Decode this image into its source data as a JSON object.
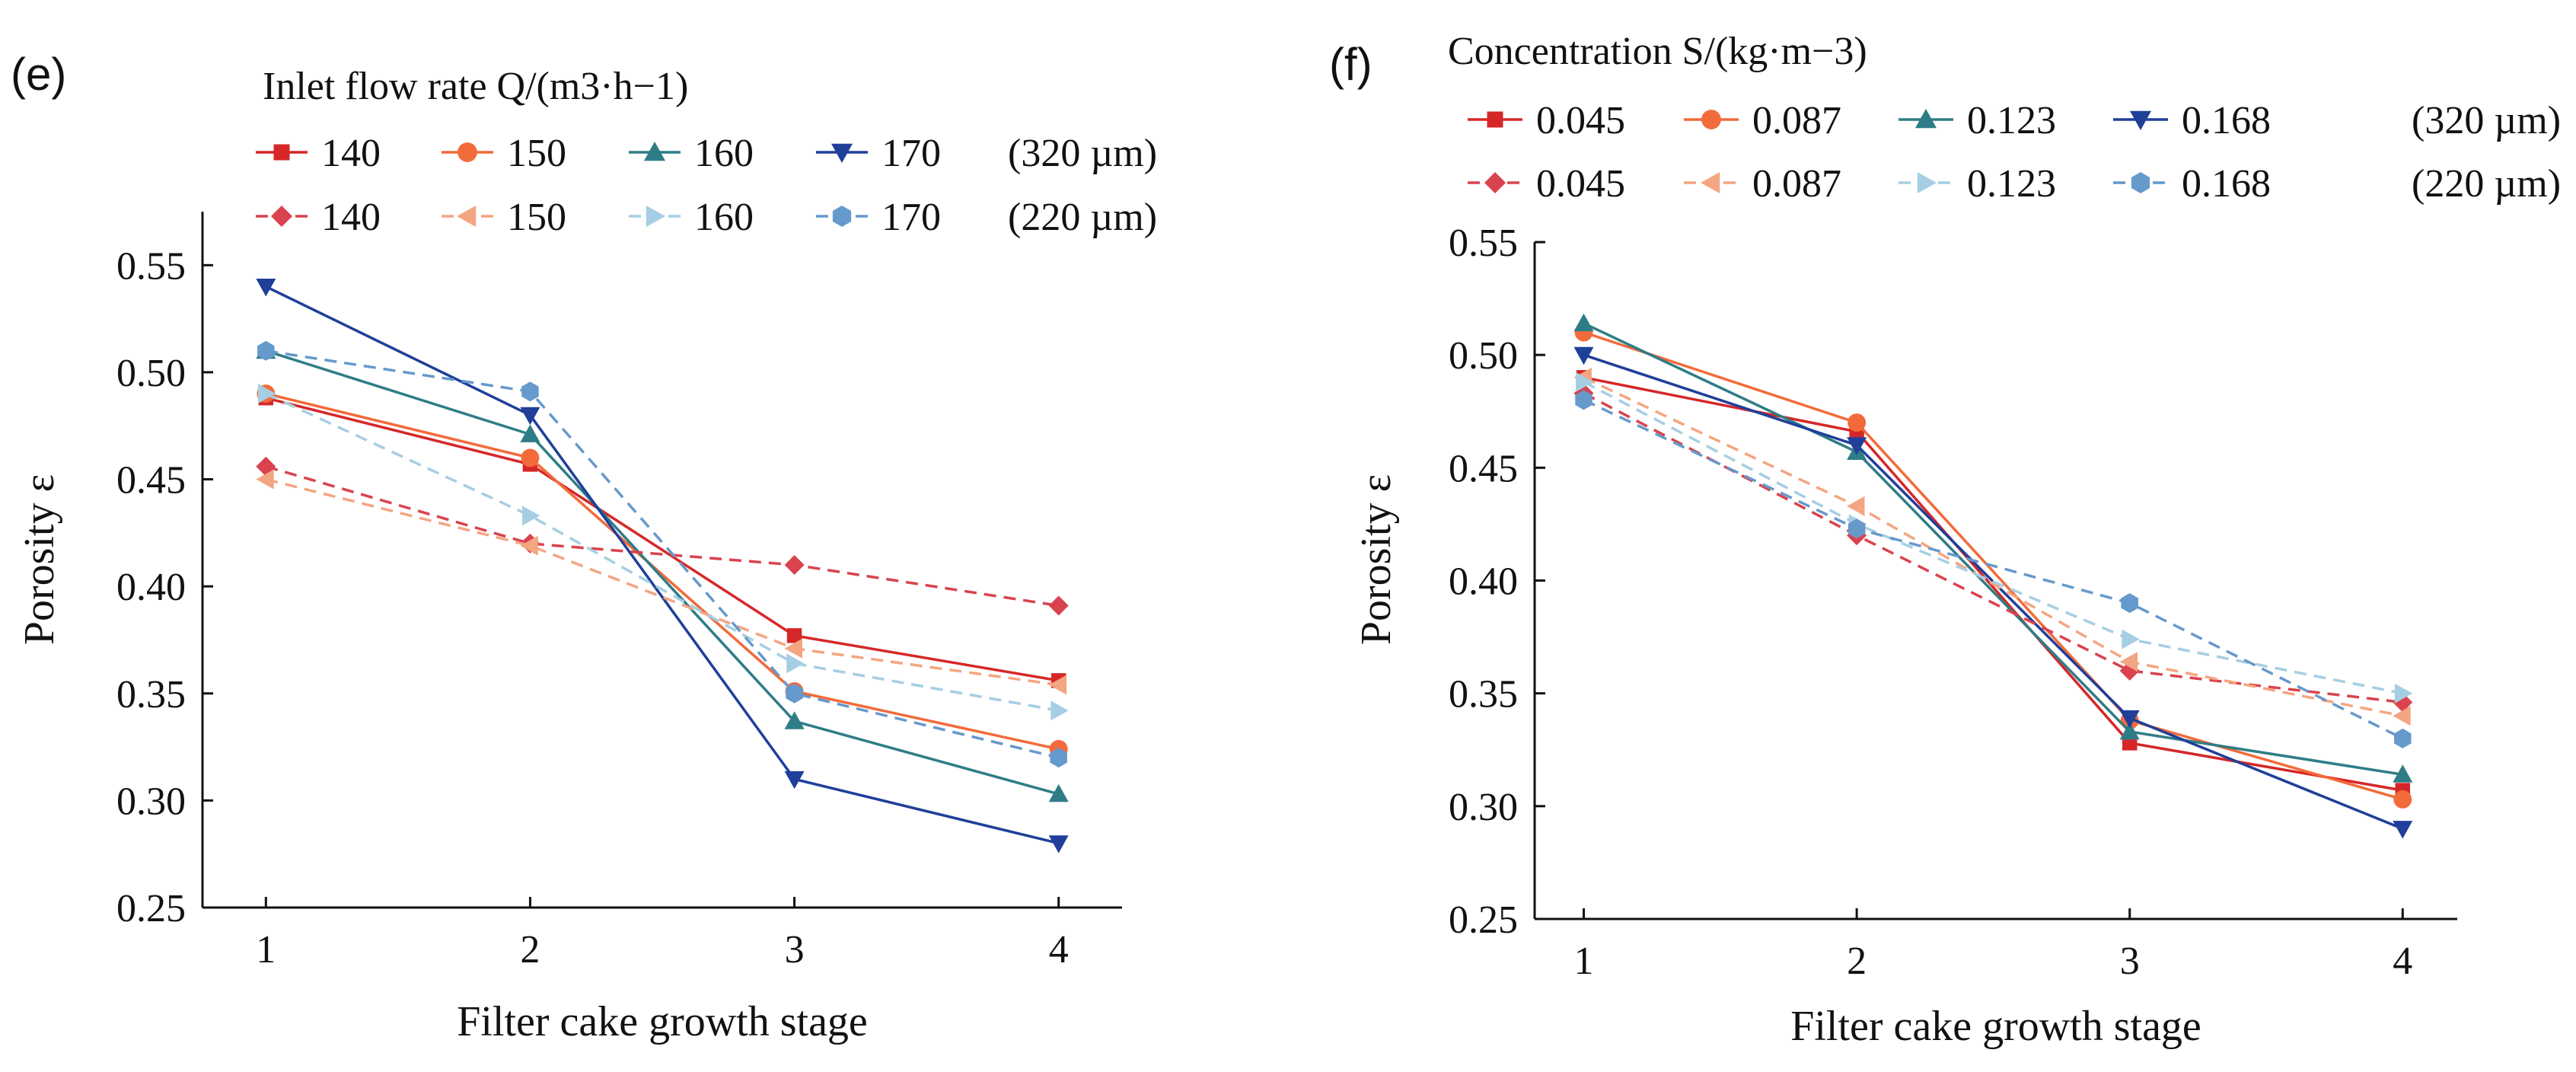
{
  "chart_data": [
    {
      "type": "line",
      "panel_label": "(e)",
      "legend_title": "Inlet flow rate Q/(m3·h−1)",
      "xlabel": "Filter cake growth stage",
      "ylabel": "Porosity ε",
      "x": [
        1,
        2,
        3,
        4
      ],
      "xticks": [
        "1",
        "2",
        "3",
        "4"
      ],
      "xlim": [
        0.76,
        4.24
      ],
      "ylim": [
        0.25,
        0.575
      ],
      "yticks": [
        "0.25",
        "0.30",
        "0.35",
        "0.40",
        "0.45",
        "0.50",
        "0.55"
      ],
      "grid": false,
      "legend_rows": [
        {
          "suffix": "(320 µm)"
        },
        {
          "suffix": "(220 µm)"
        }
      ],
      "series": [
        {
          "name": "140",
          "group": "320 µm",
          "color": "#d62728",
          "marker": "square",
          "dashed": false,
          "values": [
            0.488,
            0.457,
            0.377,
            0.356
          ]
        },
        {
          "name": "150",
          "group": "320 µm",
          "color": "#f26b3a",
          "marker": "circle",
          "dashed": false,
          "values": [
            0.49,
            0.46,
            0.351,
            0.324
          ]
        },
        {
          "name": "160",
          "group": "320 µm",
          "color": "#2e7d86",
          "marker": "triangle-up",
          "dashed": false,
          "values": [
            0.51,
            0.471,
            0.337,
            0.303
          ]
        },
        {
          "name": "170",
          "group": "320 µm",
          "color": "#1f3f99",
          "marker": "triangle-down",
          "dashed": false,
          "values": [
            0.54,
            0.48,
            0.31,
            0.28
          ]
        },
        {
          "name": "140",
          "group": "220 µm",
          "color": "#d9434e",
          "marker": "diamond",
          "dashed": true,
          "values": [
            0.456,
            0.42,
            0.41,
            0.391
          ]
        },
        {
          "name": "150",
          "group": "220 µm",
          "color": "#f4a582",
          "marker": "triangle-left",
          "dashed": true,
          "values": [
            0.45,
            0.419,
            0.371,
            0.354
          ]
        },
        {
          "name": "160",
          "group": "220 µm",
          "color": "#a6cee3",
          "marker": "triangle-right",
          "dashed": true,
          "values": [
            0.49,
            0.433,
            0.364,
            0.342
          ]
        },
        {
          "name": "170",
          "group": "220 µm",
          "color": "#6699cc",
          "marker": "hexagon",
          "dashed": true,
          "values": [
            0.51,
            0.491,
            0.35,
            0.32
          ]
        }
      ]
    },
    {
      "type": "line",
      "panel_label": "(f)",
      "legend_title": "Concentration S/(kg·m−3)",
      "xlabel": "Filter cake growth stage",
      "ylabel": "Porosity ε",
      "x": [
        1,
        2,
        3,
        4
      ],
      "xticks": [
        "1",
        "2",
        "3",
        "4"
      ],
      "xlim": [
        0.82,
        4.2
      ],
      "ylim": [
        0.25,
        0.55
      ],
      "yticks": [
        "0.25",
        "0.30",
        "0.35",
        "0.40",
        "0.45",
        "0.50",
        "0.55"
      ],
      "grid": false,
      "legend_rows": [
        {
          "suffix": "(320 µm)"
        },
        {
          "suffix": "(220 µm)"
        }
      ],
      "series": [
        {
          "name": "0.045",
          "group": "320 µm",
          "color": "#d62728",
          "marker": "square",
          "dashed": false,
          "values": [
            0.49,
            0.466,
            0.328,
            0.307
          ]
        },
        {
          "name": "0.087",
          "group": "320 µm",
          "color": "#f26b3a",
          "marker": "circle",
          "dashed": false,
          "values": [
            0.51,
            0.47,
            0.338,
            0.303
          ]
        },
        {
          "name": "0.123",
          "group": "320 µm",
          "color": "#2e7d86",
          "marker": "triangle-up",
          "dashed": false,
          "values": [
            0.514,
            0.457,
            0.333,
            0.314
          ]
        },
        {
          "name": "0.168",
          "group": "320 µm",
          "color": "#1f3f99",
          "marker": "triangle-down",
          "dashed": false,
          "values": [
            0.5,
            0.46,
            0.339,
            0.29
          ]
        },
        {
          "name": "0.045",
          "group": "220 µm",
          "color": "#d9434e",
          "marker": "diamond",
          "dashed": true,
          "values": [
            0.483,
            0.42,
            0.36,
            0.346
          ]
        },
        {
          "name": "0.087",
          "group": "220 µm",
          "color": "#f4a582",
          "marker": "triangle-left",
          "dashed": true,
          "values": [
            0.49,
            0.433,
            0.364,
            0.34
          ]
        },
        {
          "name": "0.123",
          "group": "220 µm",
          "color": "#a6cee3",
          "marker": "triangle-right",
          "dashed": true,
          "values": [
            0.488,
            0.425,
            0.374,
            0.35
          ]
        },
        {
          "name": "0.168",
          "group": "220 µm",
          "color": "#6699cc",
          "marker": "hexagon",
          "dashed": true,
          "values": [
            0.48,
            0.423,
            0.39,
            0.33
          ]
        }
      ]
    }
  ]
}
